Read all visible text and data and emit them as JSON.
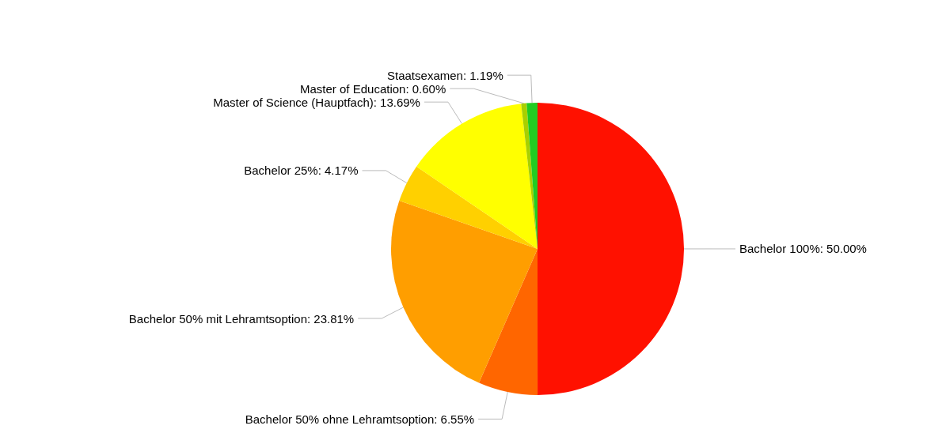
{
  "chart_data": {
    "type": "pie",
    "categories": [
      "Bachelor 100%",
      "Bachelor 50% ohne Lehramtsoption",
      "Bachelor 50% mit Lehramtsoption",
      "Bachelor 25%",
      "Master of Science (Hauptfach)",
      "Master of Education",
      "Staatsexamen"
    ],
    "values": [
      50.0,
      6.55,
      23.81,
      4.17,
      13.69,
      0.6,
      1.19
    ],
    "value_labels": [
      "50.00%",
      "6.55%",
      "23.81%",
      "4.17%",
      "13.69%",
      "0.60%",
      "1.19%"
    ],
    "colors": [
      "#ff1100",
      "#ff6600",
      "#ff9e00",
      "#ffd000",
      "#ffff00",
      "#a8d000",
      "#22cc22"
    ],
    "legend": false
  }
}
